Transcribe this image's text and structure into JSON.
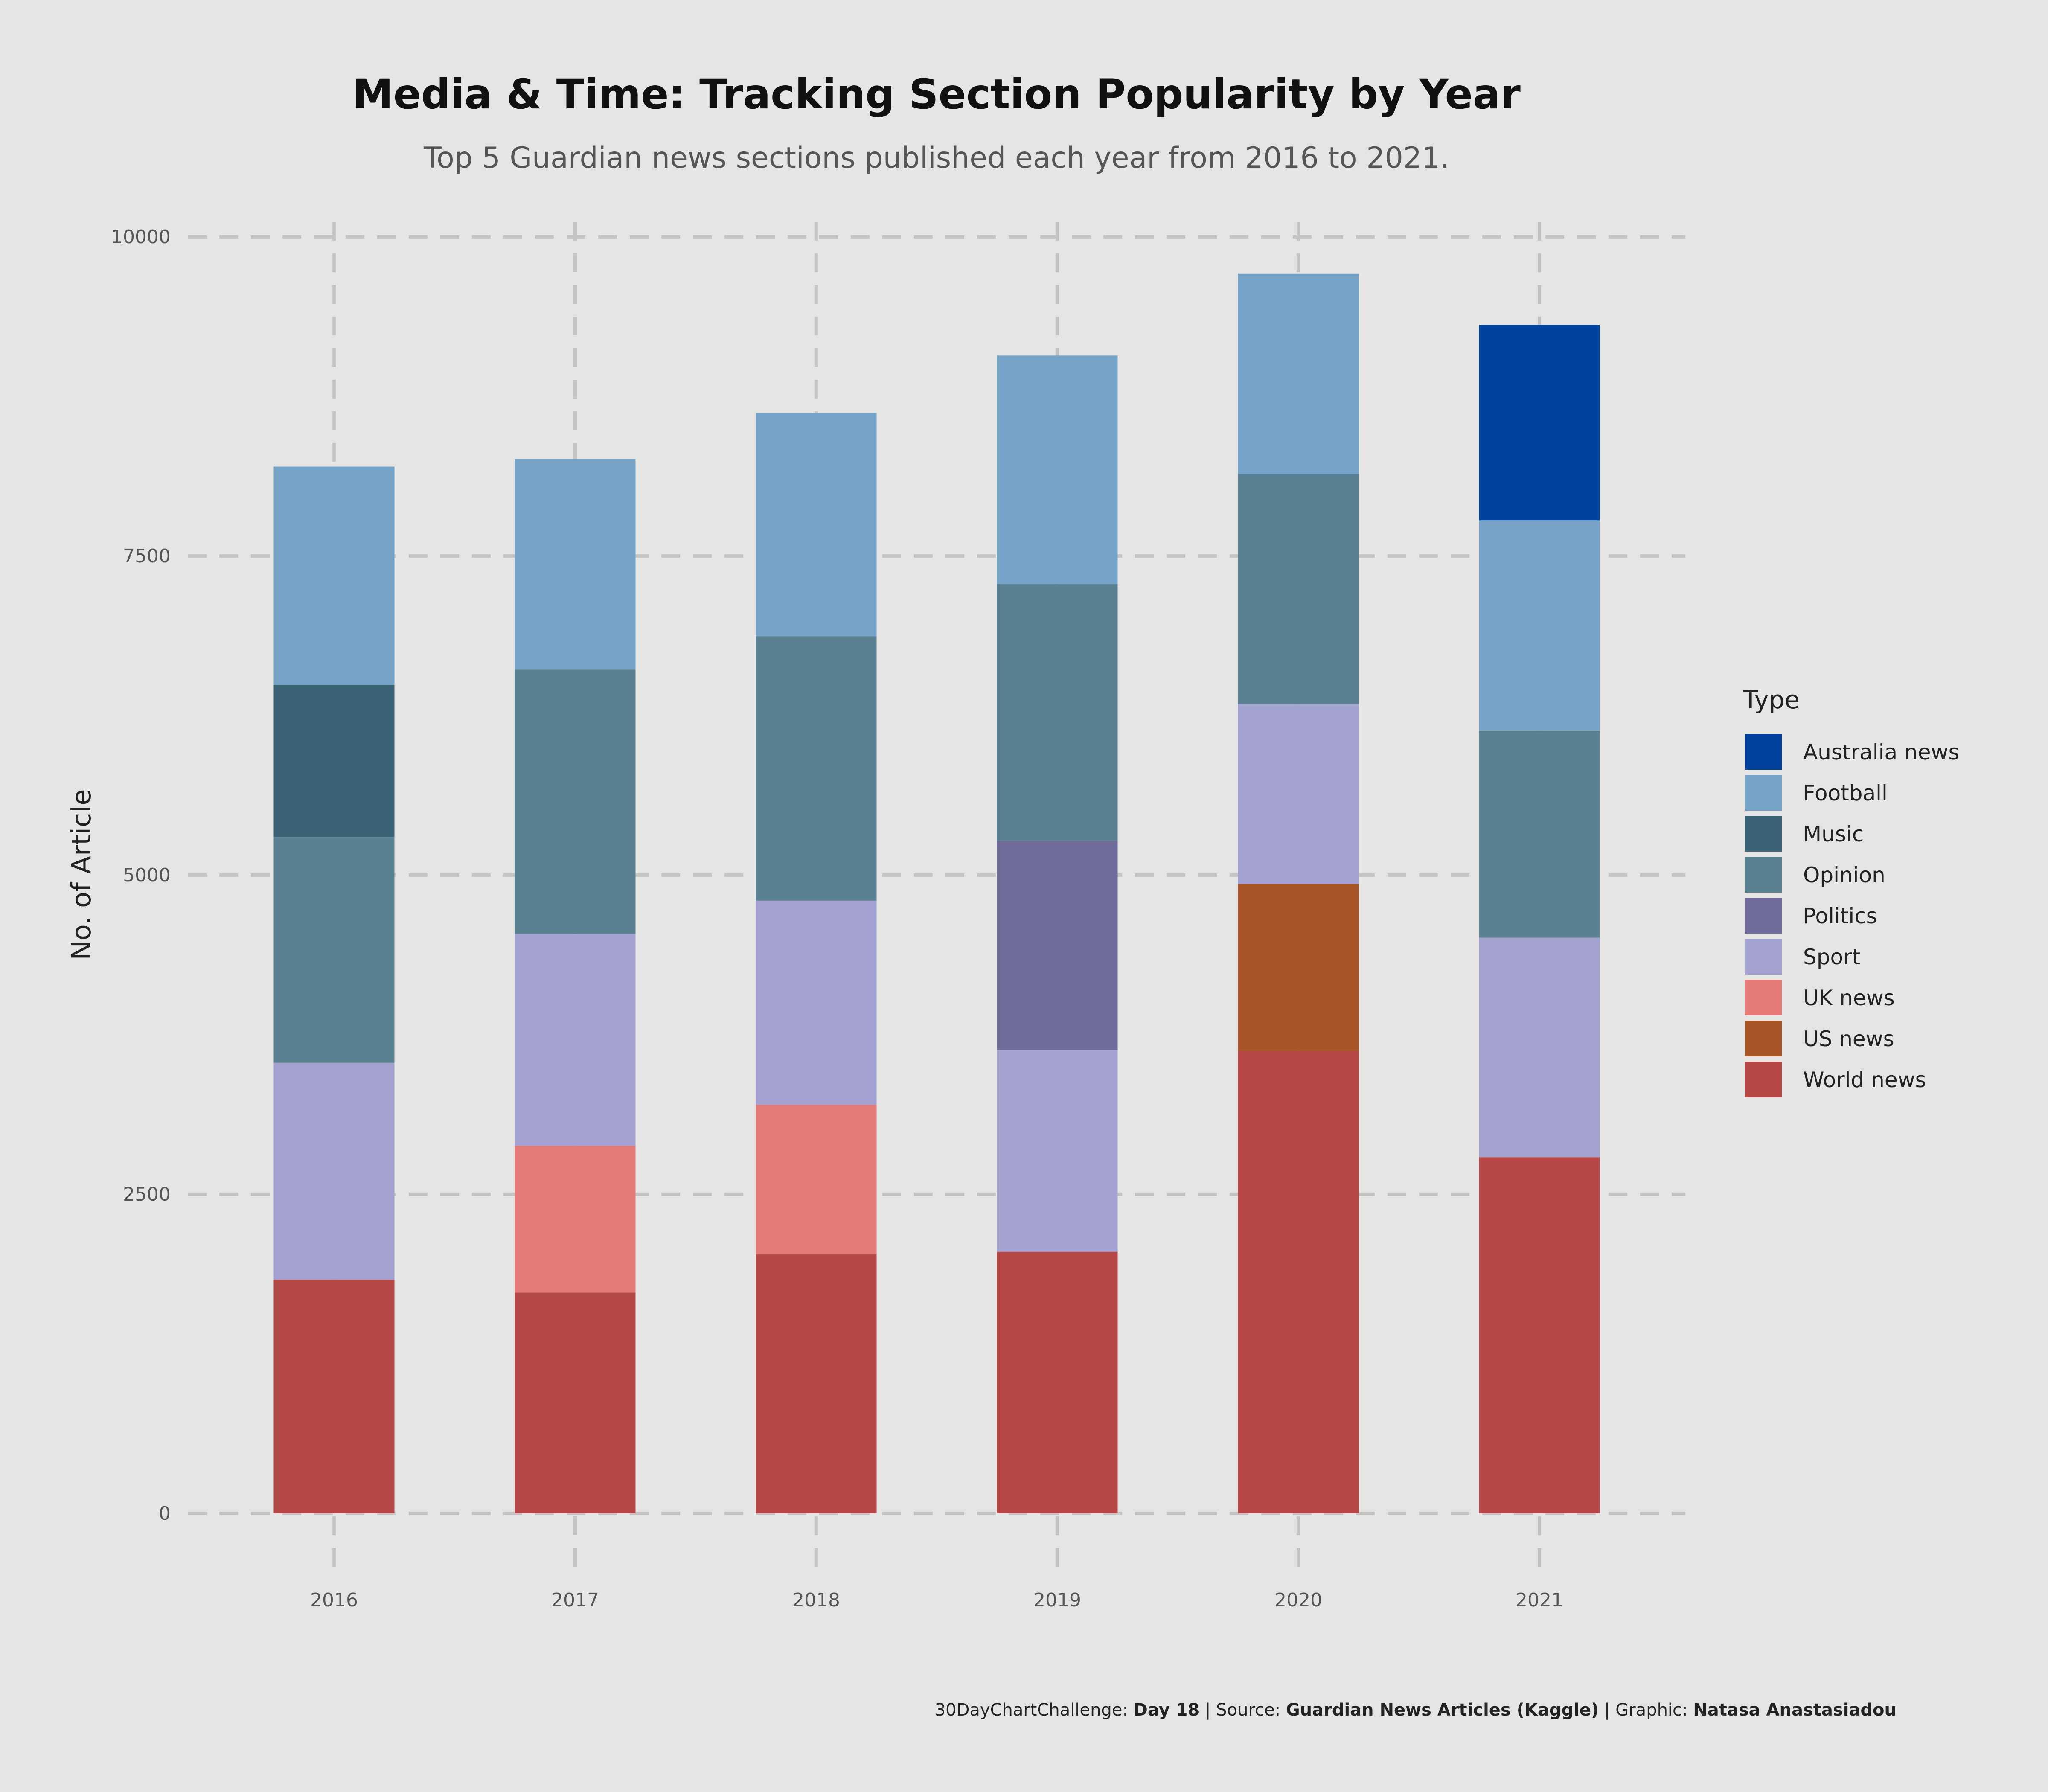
{
  "chart_data": {
    "type": "bar",
    "stacked": true,
    "title": "Media & Time: Tracking Section Popularity by Year",
    "subtitle": "Top 5 Guardian news sections published each year from 2016 to 2021.",
    "ylabel": "No. of Article",
    "xlabel": "",
    "ylim": [
      0,
      10000
    ],
    "yticks": [
      "0",
      "2500",
      "5000",
      "7500",
      "10000"
    ],
    "categories": [
      "2016",
      "2017",
      "2018",
      "2019",
      "2020",
      "2021"
    ],
    "grid": true,
    "legend": {
      "title": "Type",
      "position": "right"
    },
    "stack_order": [
      "World news",
      "US news",
      "UK news",
      "Sport",
      "Politics",
      "Opinion",
      "Music",
      "Football",
      "Australia news"
    ],
    "legend_order": [
      "Australia news",
      "Football",
      "Music",
      "Opinion",
      "Politics",
      "Sport",
      "UK news",
      "US news",
      "World news"
    ],
    "series": [
      {
        "name": "World news",
        "color": "#b54747",
        "values": [
          1830,
          1730,
          2030,
          2050,
          3620,
          2790
        ]
      },
      {
        "name": "US news",
        "color": "#a65628",
        "values": [
          0,
          0,
          0,
          0,
          1310,
          0
        ]
      },
      {
        "name": "UK news",
        "color": "#e47b78",
        "values": [
          0,
          1150,
          1170,
          0,
          0,
          0
        ]
      },
      {
        "name": "Sport",
        "color": "#a3a1cf",
        "values": [
          1700,
          1660,
          1600,
          1580,
          1410,
          1720
        ]
      },
      {
        "name": "Politics",
        "color": "#706c9b",
        "values": [
          0,
          0,
          0,
          1640,
          0,
          0
        ]
      },
      {
        "name": "Opinion",
        "color": "#5a8191",
        "values": [
          1770,
          2070,
          2070,
          2010,
          1800,
          1620
        ]
      },
      {
        "name": "Music",
        "color": "#3b6375",
        "values": [
          1190,
          0,
          0,
          0,
          0,
          0
        ]
      },
      {
        "name": "Football",
        "color": "#75a3c7",
        "values": [
          1710,
          1650,
          1750,
          1790,
          1570,
          1650
        ]
      },
      {
        "name": "Australia news",
        "color": "#00429d",
        "values": [
          0,
          0,
          0,
          0,
          0,
          1530
        ]
      }
    ]
  },
  "caption": {
    "part1": "30DayChartChallenge:",
    "part2": "Day 18",
    "part3": "| Source:",
    "part4": "Guardian News Articles (Kaggle)",
    "part5": "| Graphic:",
    "part6": "Natasa Anastasiadou"
  }
}
